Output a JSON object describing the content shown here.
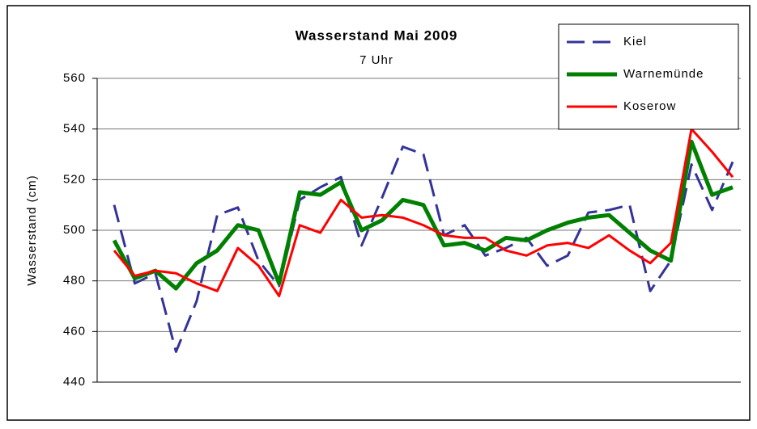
{
  "chart_data": {
    "type": "line",
    "title": "Wasserstand Mai 2009",
    "subtitle": "7 Uhr",
    "y_label": "Wasserstand (cm)",
    "ylim": [
      440,
      560
    ],
    "yticks": [
      440,
      460,
      480,
      500,
      520,
      540,
      560
    ],
    "grid": true,
    "legend": "top-right",
    "series": [
      {
        "name": "Kiel",
        "color": "#333399",
        "dash": true,
        "width": 3,
        "values": [
          510,
          479,
          483,
          452,
          472,
          506,
          509,
          488,
          478,
          512,
          517,
          521,
          494,
          513,
          533,
          530,
          498,
          502,
          490,
          493,
          497,
          486,
          490,
          507,
          508,
          510,
          476,
          488,
          526,
          508,
          527
        ]
      },
      {
        "name": "Warnemünde",
        "color": "#008000",
        "dash": false,
        "width": 5,
        "values": [
          496,
          481,
          484,
          477,
          487,
          492,
          502,
          500,
          479,
          515,
          514,
          519,
          500,
          504,
          512,
          510,
          494,
          495,
          492,
          497,
          496,
          500,
          503,
          505,
          506,
          499,
          492,
          488,
          535,
          514,
          517
        ]
      },
      {
        "name": "Koserow",
        "color": "#ff0000",
        "dash": false,
        "width": 3,
        "values": [
          492,
          482,
          484,
          483,
          479,
          476,
          493,
          486,
          474,
          502,
          499,
          512,
          505,
          506,
          505,
          502,
          498,
          497,
          497,
          492,
          490,
          494,
          495,
          493,
          498,
          492,
          487,
          495,
          540,
          531,
          521
        ]
      }
    ]
  }
}
